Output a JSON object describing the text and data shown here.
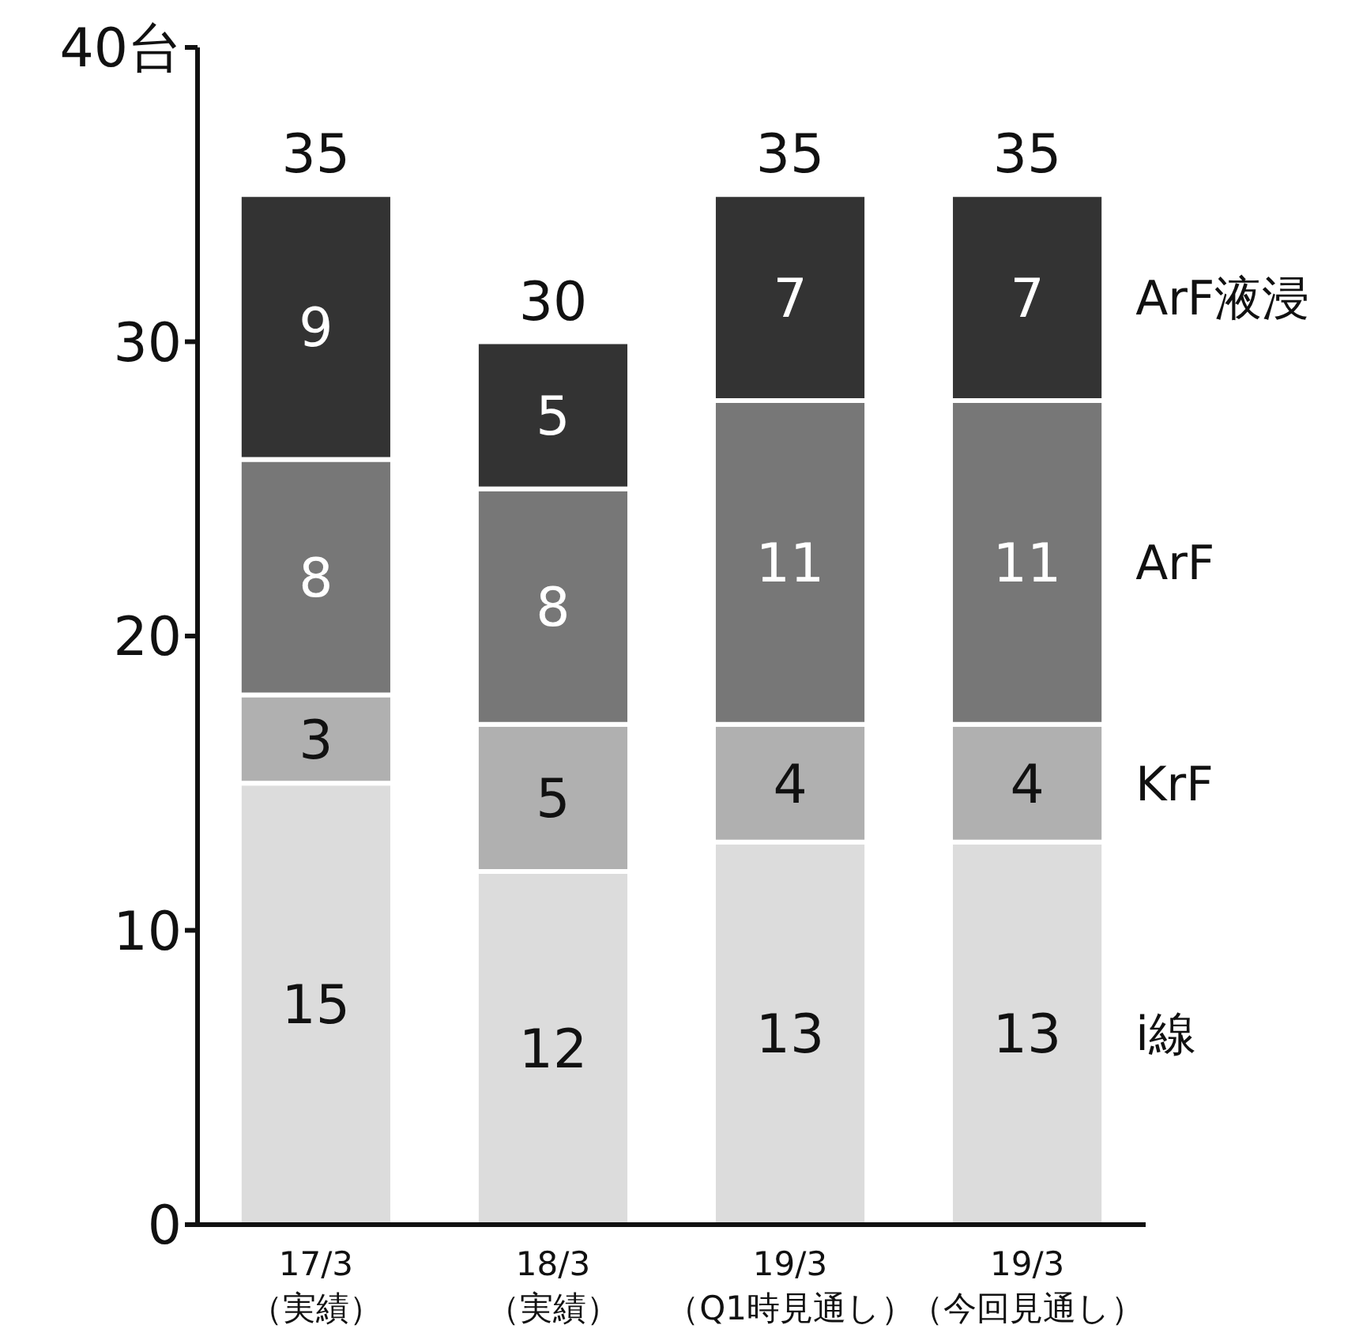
{
  "chart_data": {
    "type": "bar",
    "stacked": true,
    "categories": [
      "17/3\n（実績）",
      "18/3\n（実績）",
      "19/3\n（Q1時見通し）",
      "19/3\n（今回見通し）"
    ],
    "series": [
      {
        "name": "i線",
        "color": "#dcdcdc",
        "values": [
          15,
          12,
          13,
          13
        ]
      },
      {
        "name": "KrF",
        "color": "#b0b0b0",
        "values": [
          3,
          5,
          4,
          4
        ]
      },
      {
        "name": "ArF",
        "color": "#777777",
        "values": [
          8,
          8,
          11,
          11
        ]
      },
      {
        "name": "ArF液浸",
        "color": "#333333",
        "values": [
          9,
          5,
          7,
          7
        ]
      }
    ],
    "ylim": [
      0,
      40
    ],
    "yticks": [
      0,
      10,
      20,
      30,
      {
        "value": 40,
        "label": "40台"
      }
    ],
    "data_labels": true,
    "totals": [
      "35",
      "30",
      "35",
      "35"
    ],
    "grid": false
  }
}
